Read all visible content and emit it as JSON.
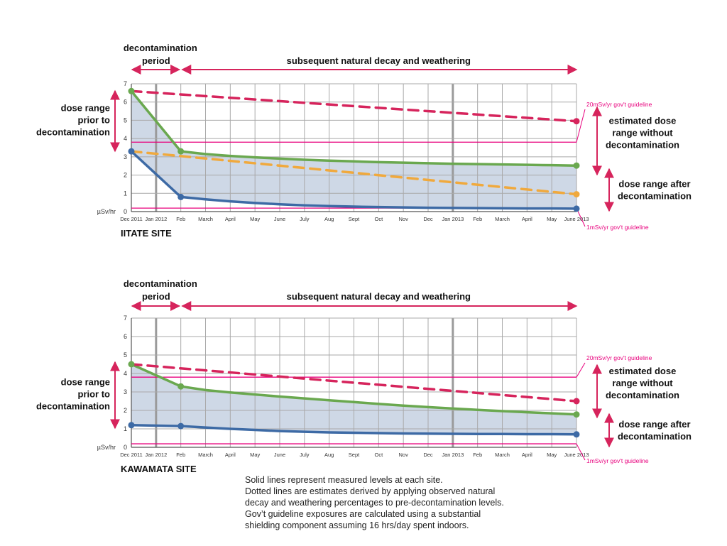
{
  "chart_data": [
    {
      "type": "line",
      "site_label": "IITATE SITE",
      "period_labels": {
        "decontamination_line1": "decontamination",
        "decontamination_line2": "period",
        "subsequent": "subsequent natural decay and weathering"
      },
      "ylabel": "µSv/hr",
      "ylim": [
        0,
        7
      ],
      "yticks": [
        "0",
        "1",
        "2",
        "3",
        "4",
        "5",
        "6",
        "7"
      ],
      "x_tick_labels": [
        "Dec 2011",
        "Jan 2012",
        "Feb",
        "March",
        "April",
        "May",
        "June",
        "July",
        "Aug",
        "Sept",
        "Oct",
        "Nov",
        "Dec",
        "Jan 2013",
        "Feb",
        "March",
        "April",
        "May",
        "June 2013"
      ],
      "grid": true,
      "guidelines": [
        {
          "label": "20mSv/yr gov't guideline",
          "y": 3.8,
          "color": "#e8007d"
        },
        {
          "label": "1mSv/yr gov't guideline",
          "y": 0.19,
          "color": "#e8007d"
        }
      ],
      "side_annotations": {
        "left": [
          "dose range",
          "prior to",
          "decontamination"
        ],
        "right_top": [
          "estimated dose",
          "range without",
          "decontamination"
        ],
        "right_bottom": [
          "dose range after",
          "decontamination"
        ]
      },
      "series": [
        {
          "style": "solid",
          "color": "#6aa84f",
          "x": [
            0,
            2,
            3,
            4,
            5,
            6,
            7,
            8,
            9,
            10,
            11,
            12,
            13,
            14,
            15,
            16,
            17,
            18
          ],
          "values": [
            6.6,
            3.3,
            3.15,
            3.05,
            2.97,
            2.9,
            2.84,
            2.79,
            2.75,
            2.71,
            2.68,
            2.65,
            2.62,
            2.6,
            2.58,
            2.56,
            2.54,
            2.52
          ]
        },
        {
          "style": "solid",
          "color": "#3d6aa5",
          "x": [
            0,
            2,
            3,
            4,
            5,
            6,
            7,
            8,
            9,
            10,
            11,
            12,
            13,
            14,
            15,
            16,
            17,
            18
          ],
          "values": [
            3.3,
            0.8,
            0.67,
            0.56,
            0.47,
            0.4,
            0.34,
            0.3,
            0.27,
            0.25,
            0.23,
            0.21,
            0.2,
            0.19,
            0.18,
            0.17,
            0.17,
            0.16
          ]
        },
        {
          "style": "dashed",
          "color": "#d6245c",
          "x": [
            0,
            18
          ],
          "values": [
            6.6,
            4.95
          ]
        },
        {
          "style": "dashed",
          "color": "#f0a93d",
          "x": [
            0,
            18
          ],
          "values": [
            3.3,
            0.95
          ]
        }
      ]
    },
    {
      "type": "line",
      "site_label": "KAWAMATA SITE",
      "period_labels": {
        "decontamination_line1": "decontamination",
        "decontamination_line2": "period",
        "subsequent": "subsequent natural decay and weathering"
      },
      "ylabel": "µSv/hr",
      "ylim": [
        0,
        7
      ],
      "yticks": [
        "0",
        "1",
        "2",
        "3",
        "4",
        "5",
        "6",
        "7"
      ],
      "x_tick_labels": [
        "Dec 2011",
        "Jan 2012",
        "Feb",
        "March",
        "April",
        "May",
        "June",
        "July",
        "Aug",
        "Sept",
        "Oct",
        "Nov",
        "Dec",
        "Jan 2013",
        "Feb",
        "March",
        "April",
        "May",
        "June 2013"
      ],
      "grid": true,
      "guidelines": [
        {
          "label": "20mSv/yr gov't guideline",
          "y": 3.8,
          "color": "#e8007d"
        },
        {
          "label": "1mSv/yr gov't guideline",
          "y": 0.19,
          "color": "#e8007d"
        }
      ],
      "side_annotations": {
        "left": [
          "dose range",
          "prior to",
          "decontamination"
        ],
        "right_top": [
          "estimated dose",
          "range without",
          "decontamination"
        ],
        "right_bottom": [
          "dose range after",
          "decontamination"
        ]
      },
      "series": [
        {
          "style": "solid",
          "color": "#6aa84f",
          "x": [
            0,
            2,
            3,
            4,
            5,
            6,
            7,
            8,
            9,
            10,
            11,
            12,
            13,
            14,
            15,
            16,
            17,
            18
          ],
          "values": [
            4.5,
            3.3,
            3.1,
            2.97,
            2.86,
            2.75,
            2.65,
            2.55,
            2.45,
            2.35,
            2.26,
            2.18,
            2.1,
            2.03,
            1.96,
            1.9,
            1.84,
            1.78
          ]
        },
        {
          "style": "solid",
          "color": "#3d6aa5",
          "x": [
            0,
            2,
            3,
            4,
            5,
            6,
            7,
            8,
            9,
            10,
            11,
            12,
            13,
            14,
            15,
            16,
            17,
            18
          ],
          "values": [
            1.2,
            1.15,
            1.07,
            1.0,
            0.94,
            0.88,
            0.84,
            0.81,
            0.79,
            0.77,
            0.75,
            0.74,
            0.73,
            0.72,
            0.72,
            0.71,
            0.71,
            0.7
          ]
        },
        {
          "style": "dashed",
          "color": "#d6245c",
          "x": [
            0,
            18
          ],
          "values": [
            4.5,
            2.5
          ]
        }
      ]
    }
  ],
  "footnote": [
    "Solid lines represent measured levels at each site.",
    "Dotted lines are estimates derived by applying observed natural",
    "decay and weathering percentages to pre-decontamination levels.",
    "Gov’t guideline exposures are calculated using a substantial",
    "shielding component assuming 16 hrs/day spent indoors."
  ],
  "colors": {
    "accent_magenta": "#d6245c",
    "guideline_pink": "#e8007d",
    "area_fill": "#c5d1e2",
    "grid": "#a9a9a9"
  }
}
